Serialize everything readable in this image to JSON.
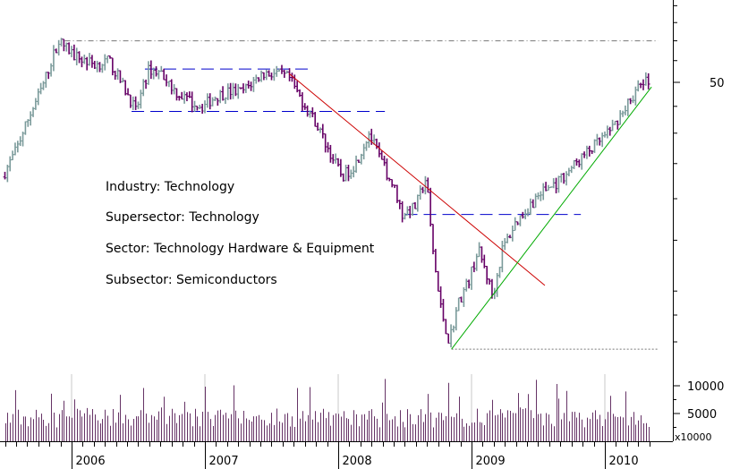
{
  "chart_data": {
    "type": "candlestick-weekly",
    "y_scale": "log",
    "price_axis": {
      "tick_labels": [
        "50"
      ],
      "ticks": [
        50
      ]
    },
    "volume_axis": {
      "tick_labels": [
        "10000",
        "5000"
      ],
      "ticks": [
        10000,
        5000
      ],
      "multiplier_label": "x10000"
    },
    "x_axis": {
      "tick_labels": [
        "2006",
        "2007",
        "2008",
        "2009",
        "2010"
      ]
    },
    "annotations": [
      "Industry: Technology",
      "Supersector: Technology",
      "Sector: Technology Hardware & Equipment",
      "Subsector: Semiconductors"
    ],
    "price_path": [
      [
        2005.5,
        33
      ],
      [
        2005.6,
        37
      ],
      [
        2005.7,
        43
      ],
      [
        2005.8,
        49
      ],
      [
        2005.92,
        60
      ],
      [
        2006.05,
        56
      ],
      [
        2006.2,
        54
      ],
      [
        2006.3,
        55
      ],
      [
        2006.45,
        47
      ],
      [
        2006.5,
        44
      ],
      [
        2006.6,
        53
      ],
      [
        2006.7,
        52
      ],
      [
        2006.8,
        48
      ],
      [
        2006.9,
        46
      ],
      [
        2007.0,
        45
      ],
      [
        2007.1,
        47
      ],
      [
        2007.2,
        48
      ],
      [
        2007.3,
        48
      ],
      [
        2007.45,
        52
      ],
      [
        2007.55,
        52
      ],
      [
        2007.65,
        51
      ],
      [
        2007.75,
        46
      ],
      [
        2007.85,
        42
      ],
      [
        2007.95,
        37
      ],
      [
        2008.05,
        33
      ],
      [
        2008.15,
        35
      ],
      [
        2008.25,
        40
      ],
      [
        2008.35,
        35
      ],
      [
        2008.45,
        31
      ],
      [
        2008.5,
        28
      ],
      [
        2008.6,
        29
      ],
      [
        2008.68,
        33
      ],
      [
        2008.72,
        25
      ],
      [
        2008.78,
        19
      ],
      [
        2008.85,
        16
      ],
      [
        2008.92,
        19
      ],
      [
        2009.0,
        21
      ],
      [
        2009.07,
        24
      ],
      [
        2009.12,
        22
      ],
      [
        2009.18,
        19.5
      ],
      [
        2009.25,
        24
      ],
      [
        2009.35,
        27
      ],
      [
        2009.45,
        29
      ],
      [
        2009.55,
        31
      ],
      [
        2009.65,
        32
      ],
      [
        2009.75,
        34
      ],
      [
        2009.85,
        36
      ],
      [
        2009.95,
        38
      ],
      [
        2010.05,
        40
      ],
      [
        2010.15,
        44
      ],
      [
        2010.3,
        50
      ]
    ],
    "trendlines": [
      {
        "color": "#cc0000",
        "x": [
          2007.63,
          2009.55
        ],
        "y": [
          52,
          20.5
        ]
      },
      {
        "color": "#00aa00",
        "x": [
          2008.85,
          2010.35
        ],
        "y": [
          15.5,
          49
        ]
      }
    ],
    "reference_lines": [
      {
        "style": "dash-dot",
        "color": "#777777",
        "y": 60,
        "x": [
          2005.95,
          2010.4
        ]
      },
      {
        "style": "dotted",
        "color": "#777777",
        "y": 15.5,
        "x": [
          2008.85,
          2010.4
        ]
      },
      {
        "style": "dashed",
        "color": "#0000cc",
        "y": 53,
        "x": [
          2006.55,
          2007.8
        ]
      },
      {
        "style": "dashed",
        "color": "#0000cc",
        "y": 44,
        "x": [
          2006.45,
          2008.35
        ]
      },
      {
        "style": "dashed",
        "color": "#0000cc",
        "y": 28,
        "x": [
          2008.5,
          2009.82
        ]
      }
    ],
    "colors": {
      "up_bar": "#7a9a9a",
      "down_bar": "#660066",
      "volume": "#663366",
      "axis": "#000000",
      "grid": "#c8c8c8"
    }
  }
}
